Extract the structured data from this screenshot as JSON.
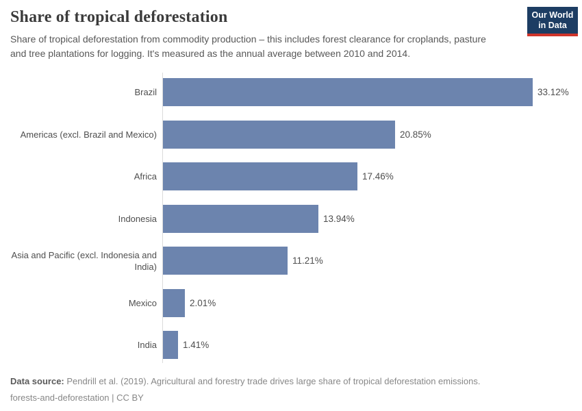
{
  "header": {
    "title": "Share of tropical deforestation",
    "subtitle": "Share of tropical deforestation from commodity production – this includes forest clearance for croplands, pasture and tree plantations for logging. It's measured as the annual average between 2010 and 2014.",
    "logo": {
      "line1": "Our World",
      "line2": "in Data",
      "bg_color": "#1d3d63",
      "accent_color": "#cf342b"
    }
  },
  "chart_data": {
    "type": "bar",
    "orientation": "horizontal",
    "title": "Share of tropical deforestation",
    "categories": [
      "Brazil",
      "Americas (excl. Brazil and Mexico)",
      "Africa",
      "Indonesia",
      "Asia and Pacific (excl. Indonesia and India)",
      "Mexico",
      "India"
    ],
    "values": [
      33.12,
      20.85,
      17.46,
      13.94,
      11.21,
      2.01,
      1.41
    ],
    "value_labels": [
      "33.12%",
      "20.85%",
      "17.46%",
      "13.94%",
      "11.21%",
      "2.01%",
      "1.41%"
    ],
    "bar_color": "#6c84ae",
    "xlim": [
      0,
      34
    ],
    "grid": false,
    "legend": "none",
    "unit": "%"
  },
  "footer": {
    "source_label": "Data source:",
    "source_text": " Pendrill et al. (2019). Agricultural and forestry trade drives large share of tropical deforestation emissions.",
    "note_line": "forests-and-deforestation | CC BY"
  }
}
